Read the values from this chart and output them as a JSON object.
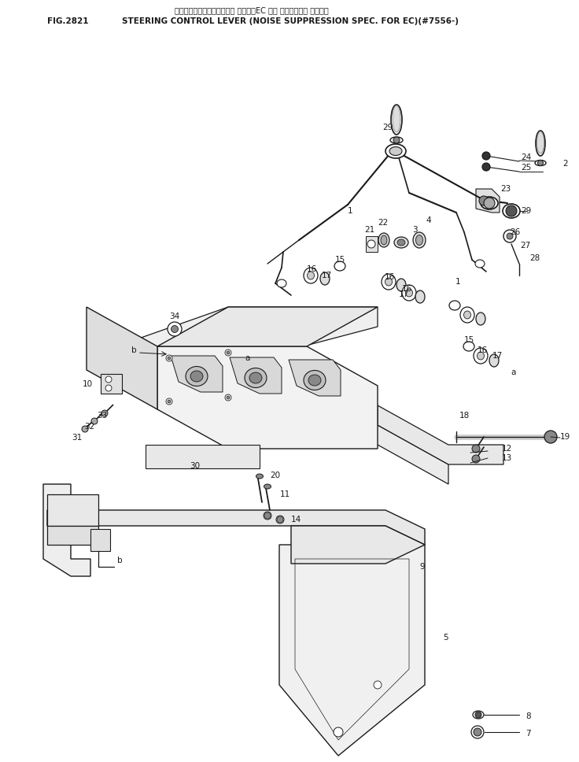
{
  "title_line1": "ステアリング　コントロール レバー（EC ムコ テイングオフ ショウ）",
  "title_line2": "STEERING CONTROL LEVER (NOISE SUPPRESSION SPEC. FOR EC)(#7556-)",
  "fig_number": "FIG.2821",
  "background_color": "#ffffff",
  "line_color": "#1a1a1a",
  "figsize": [
    7.36,
    9.68
  ],
  "dpi": 100
}
